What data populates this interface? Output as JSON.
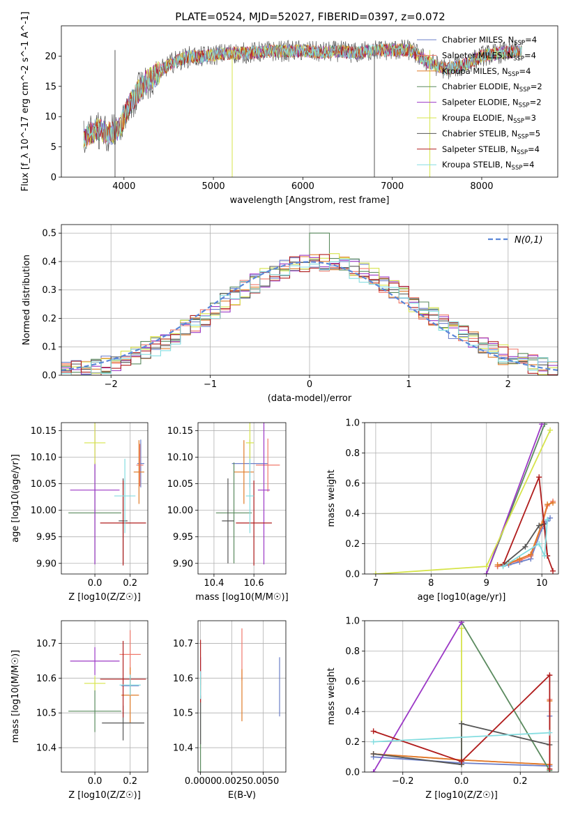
{
  "figure": {
    "title": "PLATE=0524, MJD=52027, FIBERID=0397, z=0.072"
  },
  "series_colors": [
    "#6b7fc9",
    "#f0796b",
    "#e07b28",
    "#5a8a5e",
    "#9b38c6",
    "#d6e44a",
    "#555555",
    "#b01c1c",
    "#84dde0"
  ],
  "chart_data": [
    {
      "type": "line",
      "panel": "spectrum",
      "xlabel": "wavelength [Angstrom, rest frame]",
      "ylabel": "Flux [f_λ 10^-17 erg cm^-2 s^-1 A^-1]",
      "xlim": [
        3300,
        8850
      ],
      "ylim": [
        0,
        25
      ],
      "xticks": [
        4000,
        5000,
        6000,
        7000,
        8000
      ],
      "yticks": [
        0,
        5,
        10,
        15,
        20
      ],
      "grid": false,
      "legend_placement": "upper right",
      "legend": [
        {
          "name": "Chabrier MILES",
          "nssp": "4"
        },
        {
          "name": "Salpeter MILES",
          "nssp": "4"
        },
        {
          "name": "Kroupa MILES",
          "nssp": "4"
        },
        {
          "name": "Chabrier ELODIE",
          "nssp": "2"
        },
        {
          "name": "Salpeter ELODIE",
          "nssp": "2"
        },
        {
          "name": "Kroupa ELODIE",
          "nssp": "3"
        },
        {
          "name": "Chabrier STELIB",
          "nssp": "5"
        },
        {
          "name": "Salpeter STELIB",
          "nssp": "4"
        },
        {
          "name": "Kroupa STELIB",
          "nssp": "4"
        }
      ],
      "continuum": {
        "x": [
          3550,
          3700,
          3850,
          3950,
          4050,
          4150,
          4250,
          4350,
          4450,
          4550,
          4650,
          4750,
          4850,
          5000,
          5200,
          5400,
          5600,
          5800,
          6000,
          6200,
          6400,
          6600,
          6800,
          7000,
          7200,
          7400,
          7600,
          7800,
          8000,
          8200,
          8400
        ],
        "y": [
          6.5,
          8.0,
          7.2,
          8.0,
          11.5,
          14.0,
          15.8,
          16.8,
          18.0,
          19.0,
          19.5,
          20.0,
          19.8,
          20.2,
          20.5,
          20.5,
          20.8,
          20.8,
          20.9,
          20.6,
          20.8,
          20.5,
          21.0,
          21.0,
          21.0,
          19.0,
          17.8,
          18.5,
          20.0,
          20.5,
          20.8
        ]
      },
      "spikes": [
        {
          "x": 3900,
          "y": 0
        },
        {
          "x": 5210,
          "y": 0
        },
        {
          "x": 6800,
          "y": 0
        },
        {
          "x": 7420,
          "y": 0
        }
      ]
    },
    {
      "type": "histogram",
      "panel": "residuals",
      "xlabel": "(data-model)/error",
      "ylabel": "Normed distribution",
      "xlim": [
        -2.5,
        2.5
      ],
      "ylim": [
        0,
        0.53
      ],
      "xticks": [
        -2,
        -1,
        0,
        1,
        2
      ],
      "yticks": [
        0.0,
        0.1,
        0.2,
        0.3,
        0.4,
        0.5
      ],
      "grid": true,
      "legend_placement": "upper right",
      "reference_curve": {
        "name": "N(0,1)",
        "mean": 0,
        "sigma": 1
      },
      "bin_width": 0.1,
      "noise_amplitude": 0.035
    },
    {
      "type": "scatter",
      "panel": "age-vs-Z",
      "xlabel": "Z [log10(Z/Z☉)]",
      "ylabel": "age [log10(age/yr)]",
      "xlim": [
        -0.19,
        0.3
      ],
      "ylim": [
        9.88,
        10.165
      ],
      "xticks": [
        0.0,
        0.2
      ],
      "yticks": [
        9.9,
        9.95,
        10.0,
        10.05,
        10.1,
        10.15
      ],
      "grid": true,
      "points": [
        {
          "x": 0.26,
          "xerr": 0.02,
          "y": 10.088,
          "yerr": 0.045
        },
        {
          "x": 0.255,
          "xerr": 0.02,
          "y": 10.085,
          "yerr": 0.04
        },
        {
          "x": 0.25,
          "xerr": 0.03,
          "y": 10.072,
          "yerr": 0.06
        },
        {
          "x": 0.0,
          "xerr": 0.15,
          "y": 9.995,
          "yerr": 0.095
        },
        {
          "x": 0.0,
          "xerr": 0.14,
          "y": 10.038,
          "yerr": 0.14
        },
        {
          "x": 0.0,
          "xerr": 0.06,
          "y": 10.127,
          "yerr": 0.04
        },
        {
          "x": 0.16,
          "xerr": 0.025,
          "y": 9.98,
          "yerr": 0.08
        },
        {
          "x": 0.16,
          "xerr": 0.13,
          "y": 9.976,
          "yerr": 0.08
        },
        {
          "x": 0.17,
          "xerr": 0.06,
          "y": 10.027,
          "yerr": 0.07
        }
      ]
    },
    {
      "type": "scatter",
      "panel": "age-vs-mass",
      "xlabel": "mass [log10(M/M☉)]",
      "ylabel": "",
      "xlim": [
        10.32,
        10.76
      ],
      "ylim": [
        9.88,
        10.165
      ],
      "xticks": [
        10.4,
        10.6
      ],
      "yticks": [
        9.9,
        9.95,
        10.0,
        10.05,
        10.1,
        10.15
      ],
      "grid": true,
      "points": [
        {
          "x": 10.58,
          "xerr": 0.09,
          "y": 10.088,
          "yerr": 0.045
        },
        {
          "x": 10.67,
          "xerr": 0.06,
          "y": 10.085,
          "yerr": 0.05
        },
        {
          "x": 10.55,
          "xerr": 0.05,
          "y": 10.072,
          "yerr": 0.06
        },
        {
          "x": 10.5,
          "xerr": 0.09,
          "y": 9.995,
          "yerr": 0.095
        },
        {
          "x": 10.65,
          "xerr": 0.03,
          "y": 10.038,
          "yerr": 0.14
        },
        {
          "x": 10.58,
          "xerr": 0.02,
          "y": 10.127,
          "yerr": 0.04
        },
        {
          "x": 10.47,
          "xerr": 0.03,
          "y": 9.98,
          "yerr": 0.08
        },
        {
          "x": 10.6,
          "xerr": 0.09,
          "y": 9.976,
          "yerr": 0.08
        },
        {
          "x": 10.58,
          "xerr": 0.02,
          "y": 10.027,
          "yerr": 0.07
        }
      ]
    },
    {
      "type": "line",
      "panel": "mass-weight-vs-age",
      "xlabel": "age  [log10(age/yr)]",
      "ylabel": "mass weight",
      "xlim": [
        6.8,
        10.3
      ],
      "ylim": [
        0,
        1.0
      ],
      "xticks": [
        7,
        8,
        9,
        10
      ],
      "yticks": [
        0.0,
        0.2,
        0.4,
        0.6,
        0.8,
        1.0
      ],
      "grid": true,
      "series": [
        {
          "x": [
            9.2,
            9.4,
            9.6,
            9.8,
            10.0,
            10.1,
            10.15
          ],
          "y": [
            0.05,
            0.06,
            0.08,
            0.1,
            0.3,
            0.35,
            0.37
          ]
        },
        {
          "x": [
            9.2,
            9.4,
            9.6,
            9.8,
            10.0,
            10.1,
            10.2
          ],
          "y": [
            0.05,
            0.07,
            0.09,
            0.12,
            0.32,
            0.45,
            0.48
          ]
        },
        {
          "x": [
            9.2,
            9.4,
            9.6,
            9.8,
            10.0,
            10.1,
            10.2
          ],
          "y": [
            0.06,
            0.07,
            0.1,
            0.13,
            0.33,
            0.46,
            0.47
          ]
        },
        {
          "x": [
            9.0,
            10.05
          ],
          "y": [
            0.0,
            0.99
          ]
        },
        {
          "x": [
            9.0,
            10.0
          ],
          "y": [
            0.0,
            0.99
          ]
        },
        {
          "x": [
            7.0,
            9.0,
            10.15
          ],
          "y": [
            0.0,
            0.05,
            0.95
          ]
        },
        {
          "x": [
            9.3,
            9.7,
            9.95,
            10.05,
            10.1
          ],
          "y": [
            0.06,
            0.18,
            0.32,
            0.33,
            0.12
          ]
        },
        {
          "x": [
            9.3,
            9.95,
            10.1,
            10.2
          ],
          "y": [
            0.06,
            0.64,
            0.12,
            0.02
          ]
        },
        {
          "x": [
            9.3,
            9.95,
            10.05,
            10.1
          ],
          "y": [
            0.05,
            0.2,
            0.12,
            0.36
          ]
        }
      ]
    },
    {
      "type": "scatter",
      "panel": "mass-vs-Z",
      "xlabel": "Z [log10(Z/Z☉)]",
      "ylabel": "mass [log10(M/M☉)]",
      "xlim": [
        -0.19,
        0.3
      ],
      "ylim": [
        10.33,
        10.765
      ],
      "xticks": [
        0.0,
        0.2
      ],
      "yticks": [
        10.4,
        10.5,
        10.6,
        10.7
      ],
      "grid": true,
      "points": [
        {
          "x": 0.2,
          "xerr": 0.05,
          "y": 10.578,
          "yerr": 0.03
        },
        {
          "x": 0.2,
          "xerr": 0.06,
          "y": 10.668,
          "yerr": 0.07
        },
        {
          "x": 0.2,
          "xerr": 0.05,
          "y": 10.551,
          "yerr": 0.08
        },
        {
          "x": 0.0,
          "xerr": 0.15,
          "y": 10.505,
          "yerr": 0.06
        },
        {
          "x": 0.0,
          "xerr": 0.14,
          "y": 10.649,
          "yerr": 0.04
        },
        {
          "x": 0.0,
          "xerr": 0.06,
          "y": 10.585,
          "yerr": 0.02
        },
        {
          "x": 0.16,
          "xerr": 0.12,
          "y": 10.471,
          "yerr": 0.05
        },
        {
          "x": 0.16,
          "xerr": 0.13,
          "y": 10.597,
          "yerr": 0.11
        },
        {
          "x": 0.2,
          "xerr": 0.06,
          "y": 10.58,
          "yerr": 0.03
        }
      ]
    },
    {
      "type": "scatter",
      "panel": "mass-vs-EBV",
      "xlabel": "E(B-V)",
      "ylabel": "",
      "xlim": [
        -0.0002,
        0.0068
      ],
      "ylim": [
        10.33,
        10.765
      ],
      "xticks": [
        0.0,
        0.0025,
        0.005
      ],
      "ytick_labels": [
        "0.0000",
        "0.0025",
        "0.0050"
      ],
      "yticks": [
        10.4,
        10.5,
        10.6,
        10.7
      ],
      "grid": true,
      "points": [
        {
          "x": 0.0063,
          "xerr": 0.0,
          "y": 10.575,
          "yerr": 0.085
        },
        {
          "x": 0.0033,
          "xerr": 0.0,
          "y": 10.668,
          "yerr": 0.075
        },
        {
          "x": 0.0033,
          "xerr": 0.0,
          "y": 10.551,
          "yerr": 0.075
        },
        {
          "x": 0.0,
          "xerr": 0.0,
          "y": 10.43,
          "yerr": 0.1
        },
        {
          "x": 0.0,
          "xerr": 0.0,
          "y": 10.62,
          "yerr": 0.04
        },
        {
          "x": 0.0,
          "xerr": 0.0,
          "y": 10.585,
          "yerr": 0.02
        },
        {
          "x": 0.0,
          "xerr": 0.0,
          "y": 10.48,
          "yerr": 0.07
        },
        {
          "x": 0.0,
          "xerr": 0.0,
          "y": 10.62,
          "yerr": 0.09
        },
        {
          "x": 0.0,
          "xerr": 0.0,
          "y": 10.58,
          "yerr": 0.04
        }
      ]
    },
    {
      "type": "line",
      "panel": "mass-weight-vs-Z",
      "xlabel": "Z [log10(Z/Z☉)]",
      "ylabel": "mass weight",
      "xlim": [
        -0.33,
        0.33
      ],
      "ylim": [
        0,
        1.0
      ],
      "xticks": [
        -0.2,
        0.0,
        0.2
      ],
      "yticks": [
        0.0,
        0.2,
        0.4,
        0.6,
        0.8,
        1.0
      ],
      "grid": true,
      "series": [
        {
          "x": [
            -0.3,
            0.0,
            0.3,
            0.3
          ],
          "y": [
            0.1,
            0.06,
            0.04,
            0.37
          ]
        },
        {
          "x": [
            -0.3,
            0.0,
            0.3,
            0.3
          ],
          "y": [
            0.12,
            0.08,
            0.05,
            0.48
          ]
        },
        {
          "x": [
            -0.3,
            0.0,
            0.3,
            0.3
          ],
          "y": [
            0.12,
            0.08,
            0.05,
            0.47
          ]
        },
        {
          "x": [
            0.0,
            0.3
          ],
          "y": [
            0.99,
            0.01
          ]
        },
        {
          "x": [
            -0.3,
            0.0
          ],
          "y": [
            0.0,
            0.99
          ]
        },
        {
          "x": [
            0.0,
            0.0
          ],
          "y": [
            0.05,
            0.95
          ]
        },
        {
          "x": [
            -0.3,
            0.0,
            0.0,
            0.3
          ],
          "y": [
            0.12,
            0.05,
            0.32,
            0.18
          ]
        },
        {
          "x": [
            -0.3,
            0.0,
            0.3,
            0.3
          ],
          "y": [
            0.27,
            0.07,
            0.64,
            0.02
          ]
        },
        {
          "x": [
            -0.3,
            0.3
          ],
          "y": [
            0.2,
            0.26
          ]
        }
      ]
    }
  ]
}
